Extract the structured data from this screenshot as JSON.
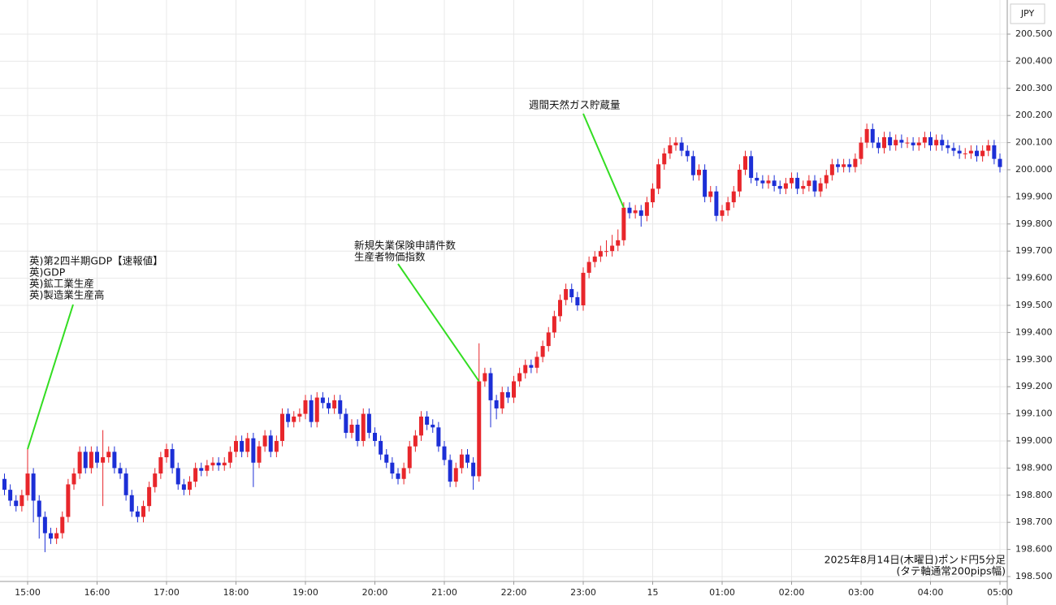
{
  "chart_data": {
    "type": "candlestick",
    "currency": "JPY",
    "note": [
      "2025年8月14日(木曜日)ポンド円5分足",
      "(タテ軸通常200pips幅)"
    ],
    "annotations": [
      {
        "lines": [
          "英)第2四半期GDP【速報値】",
          "英)GDP",
          "英)鉱工業生産",
          "英)製造業生産高"
        ]
      },
      {
        "lines": [
          "新規失業保険申請件数",
          "生産者物価指数"
        ]
      },
      {
        "lines": [
          "週間天然ガス貯蔵量"
        ]
      }
    ],
    "up_color": "#e8262b",
    "down_color": "#1c2fd6",
    "grid": true,
    "categories": [
      null,
      null,
      null,
      null,
      "15:00",
      null,
      null,
      null,
      null,
      null,
      null,
      null,
      null,
      null,
      null,
      null,
      "16:00",
      null,
      null,
      null,
      null,
      null,
      null,
      null,
      null,
      null,
      null,
      null,
      "17:00",
      null,
      null,
      null,
      null,
      null,
      null,
      null,
      null,
      null,
      null,
      null,
      "18:00",
      null,
      null,
      null,
      null,
      null,
      null,
      null,
      null,
      null,
      null,
      null,
      "19:00",
      null,
      null,
      null,
      null,
      null,
      null,
      null,
      null,
      null,
      null,
      null,
      "20:00",
      null,
      null,
      null,
      null,
      null,
      null,
      null,
      null,
      null,
      null,
      null,
      "21:00",
      null,
      null,
      null,
      null,
      null,
      null,
      null,
      null,
      null,
      null,
      null,
      "22:00",
      null,
      null,
      null,
      null,
      null,
      null,
      null,
      null,
      null,
      null,
      null,
      "23:00",
      null,
      null,
      null,
      null,
      null,
      null,
      null,
      null,
      null,
      null,
      null,
      "15",
      null,
      null,
      null,
      null,
      null,
      null,
      null,
      null,
      null,
      null,
      null,
      "01:00",
      null,
      null,
      null,
      null,
      null,
      null,
      null,
      null,
      null,
      null,
      null,
      "02:00",
      null,
      null,
      null,
      null,
      null,
      null,
      null,
      null,
      null,
      null,
      null,
      "03:00",
      null,
      null,
      null,
      null,
      null,
      null,
      null,
      null,
      null,
      null,
      null,
      "04:00",
      null,
      null,
      null,
      null,
      null,
      null,
      null,
      null,
      null,
      null,
      null,
      "05:00"
    ],
    "open": [
      198.86,
      198.82,
      198.78,
      198.76,
      198.8,
      198.88,
      198.78,
      198.72,
      198.66,
      198.64,
      198.66,
      198.72,
      198.84,
      198.88,
      198.96,
      198.9,
      198.96,
      198.92,
      198.94,
      198.96,
      198.9,
      198.88,
      198.8,
      198.74,
      198.72,
      198.76,
      198.83,
      198.88,
      198.94,
      198.97,
      198.9,
      198.84,
      198.82,
      198.85,
      198.9,
      198.89,
      198.91,
      198.92,
      198.91,
      198.92,
      198.96,
      199.0,
      198.96,
      199.01,
      198.92,
      198.98,
      199.02,
      198.96,
      199.0,
      199.1,
      199.07,
      199.09,
      199.1,
      199.15,
      199.07,
      199.16,
      199.14,
      199.12,
      199.15,
      199.1,
      199.03,
      199.06,
      199.0,
      199.1,
      199.03,
      199.0,
      198.95,
      198.92,
      198.88,
      198.86,
      198.9,
      198.98,
      199.02,
      199.09,
      199.06,
      199.05,
      198.98,
      198.93,
      198.85,
      198.9,
      198.95,
      198.92,
      198.87,
      199.22,
      199.25,
      199.15,
      199.12,
      199.18,
      199.16,
      199.22,
      199.25,
      199.28,
      199.27,
      199.31,
      199.35,
      199.4,
      199.46,
      199.52,
      199.56,
      199.53,
      199.5,
      199.62,
      199.66,
      199.68,
      199.7,
      199.7,
      199.72,
      199.74,
      199.86,
      199.84,
      199.85,
      199.83,
      199.88,
      199.93,
      200.02,
      200.06,
      200.09,
      200.1,
      200.07,
      200.05,
      199.98,
      200.0,
      199.9,
      199.92,
      199.83,
      199.85,
      199.88,
      199.92,
      200.0,
      200.05,
      199.97,
      199.96,
      199.95,
      199.96,
      199.94,
      199.93,
      199.95,
      199.97,
      199.93,
      199.94,
      199.96,
      199.92,
      199.95,
      199.98,
      200.02,
      200.01,
      200.02,
      200.01,
      200.04,
      200.1,
      200.15,
      200.1,
      200.08,
      200.12,
      200.09,
      200.11,
      200.1,
      200.1,
      200.09,
      200.1,
      200.12,
      200.09,
      200.11,
      200.09,
      200.08,
      200.07,
      200.06,
      200.06,
      200.07,
      200.05,
      200.07,
      200.09,
      200.04
    ],
    "high": [
      198.88,
      198.84,
      198.8,
      198.82,
      198.97,
      198.9,
      198.8,
      198.74,
      198.68,
      198.68,
      198.74,
      198.86,
      198.9,
      198.98,
      198.98,
      198.98,
      198.98,
      199.04,
      198.98,
      198.98,
      198.92,
      198.9,
      198.82,
      198.76,
      198.78,
      198.85,
      198.9,
      198.96,
      198.99,
      198.99,
      198.92,
      198.86,
      198.87,
      198.92,
      198.92,
      198.93,
      198.94,
      198.94,
      198.94,
      198.98,
      199.02,
      199.02,
      199.03,
      199.03,
      199.0,
      199.04,
      199.04,
      199.02,
      199.12,
      199.12,
      199.11,
      199.12,
      199.17,
      199.17,
      199.18,
      199.18,
      199.16,
      199.17,
      199.17,
      199.12,
      199.08,
      199.08,
      199.12,
      199.12,
      199.05,
      199.02,
      198.97,
      198.94,
      198.9,
      198.92,
      199.0,
      199.04,
      199.11,
      199.11,
      199.08,
      199.07,
      199.0,
      198.95,
      198.92,
      198.97,
      198.97,
      198.94,
      199.36,
      199.27,
      199.27,
      199.17,
      199.2,
      199.2,
      199.24,
      199.27,
      199.3,
      199.3,
      199.33,
      199.37,
      199.42,
      199.48,
      199.54,
      199.58,
      199.58,
      199.55,
      199.64,
      199.68,
      199.7,
      199.72,
      199.74,
      199.76,
      199.78,
      199.88,
      199.88,
      199.87,
      199.87,
      199.9,
      199.95,
      200.04,
      200.08,
      200.12,
      200.12,
      200.12,
      200.09,
      200.07,
      200.02,
      200.02,
      199.94,
      199.94,
      199.87,
      199.9,
      199.94,
      200.02,
      200.07,
      200.07,
      199.99,
      199.98,
      199.98,
      199.98,
      199.96,
      199.97,
      199.99,
      199.99,
      199.96,
      199.98,
      199.98,
      199.97,
      200.0,
      200.04,
      200.04,
      200.04,
      200.04,
      200.06,
      200.12,
      200.17,
      200.17,
      200.12,
      200.14,
      200.14,
      200.13,
      200.13,
      200.12,
      200.12,
      200.12,
      200.14,
      200.14,
      200.13,
      200.13,
      200.11,
      200.1,
      200.09,
      200.08,
      200.09,
      200.09,
      200.09,
      200.11,
      200.11,
      200.06
    ],
    "low": [
      198.8,
      198.76,
      198.74,
      198.74,
      198.78,
      198.7,
      198.64,
      198.59,
      198.62,
      198.62,
      198.64,
      198.7,
      198.82,
      198.86,
      198.88,
      198.88,
      198.9,
      198.76,
      198.92,
      198.88,
      198.86,
      198.78,
      198.72,
      198.7,
      198.7,
      198.74,
      198.81,
      198.86,
      198.92,
      198.88,
      198.82,
      198.8,
      198.8,
      198.83,
      198.87,
      198.87,
      198.89,
      198.89,
      198.89,
      198.9,
      198.94,
      198.94,
      198.94,
      198.83,
      198.9,
      198.96,
      198.94,
      198.94,
      198.98,
      199.05,
      199.05,
      199.07,
      199.08,
      199.05,
      199.05,
      199.12,
      199.1,
      199.1,
      199.08,
      199.01,
      199.01,
      198.98,
      198.98,
      199.01,
      198.98,
      198.93,
      198.9,
      198.86,
      198.84,
      198.84,
      198.88,
      198.96,
      199.0,
      199.04,
      199.03,
      198.96,
      198.91,
      198.83,
      198.83,
      198.88,
      198.9,
      198.82,
      198.85,
      199.2,
      199.05,
      199.08,
      199.1,
      199.14,
      199.14,
      199.2,
      199.23,
      199.25,
      199.25,
      199.29,
      199.33,
      199.38,
      199.44,
      199.5,
      199.51,
      199.48,
      199.48,
      199.6,
      199.64,
      199.66,
      199.68,
      199.68,
      199.7,
      199.72,
      199.82,
      199.82,
      199.79,
      199.81,
      199.86,
      199.91,
      200.0,
      200.04,
      200.07,
      200.05,
      200.03,
      199.96,
      199.96,
      199.88,
      199.88,
      199.81,
      199.81,
      199.83,
      199.86,
      199.9,
      199.98,
      199.95,
      199.94,
      199.93,
      199.93,
      199.92,
      199.91,
      199.91,
      199.93,
      199.91,
      199.91,
      199.92,
      199.9,
      199.9,
      199.93,
      199.96,
      199.99,
      199.99,
      199.99,
      199.99,
      200.02,
      200.08,
      200.08,
      200.06,
      200.06,
      200.07,
      200.07,
      200.08,
      200.08,
      200.07,
      200.07,
      200.08,
      200.07,
      200.07,
      200.07,
      200.06,
      200.05,
      200.04,
      200.04,
      200.04,
      200.03,
      200.03,
      200.05,
      200.02,
      199.99
    ],
    "close": [
      198.82,
      198.78,
      198.76,
      198.8,
      198.88,
      198.78,
      198.72,
      198.66,
      198.64,
      198.66,
      198.72,
      198.84,
      198.88,
      198.96,
      198.9,
      198.96,
      198.92,
      198.94,
      198.96,
      198.9,
      198.88,
      198.8,
      198.74,
      198.72,
      198.76,
      198.83,
      198.88,
      198.94,
      198.97,
      198.9,
      198.84,
      198.82,
      198.85,
      198.9,
      198.89,
      198.91,
      198.92,
      198.91,
      198.92,
      198.96,
      199.0,
      198.96,
      199.01,
      198.92,
      198.98,
      199.02,
      198.96,
      199.0,
      199.1,
      199.07,
      199.09,
      199.1,
      199.15,
      199.07,
      199.16,
      199.14,
      199.12,
      199.15,
      199.1,
      199.03,
      199.06,
      199.0,
      199.1,
      199.03,
      199.0,
      198.95,
      198.92,
      198.88,
      198.86,
      198.9,
      198.98,
      199.02,
      199.09,
      199.06,
      199.05,
      198.98,
      198.93,
      198.85,
      198.9,
      198.95,
      198.92,
      198.87,
      199.22,
      199.25,
      199.15,
      199.12,
      199.18,
      199.16,
      199.22,
      199.25,
      199.28,
      199.27,
      199.31,
      199.35,
      199.4,
      199.46,
      199.52,
      199.56,
      199.53,
      199.5,
      199.62,
      199.66,
      199.68,
      199.7,
      199.7,
      199.72,
      199.74,
      199.86,
      199.84,
      199.85,
      199.83,
      199.88,
      199.93,
      200.02,
      200.06,
      200.09,
      200.1,
      200.07,
      200.05,
      199.98,
      200.0,
      199.9,
      199.92,
      199.83,
      199.85,
      199.88,
      199.92,
      200.0,
      200.05,
      199.97,
      199.96,
      199.95,
      199.96,
      199.94,
      199.93,
      199.95,
      199.97,
      199.93,
      199.94,
      199.96,
      199.92,
      199.95,
      199.98,
      200.02,
      200.01,
      200.02,
      200.01,
      200.04,
      200.1,
      200.15,
      200.1,
      200.08,
      200.12,
      200.09,
      200.11,
      200.1,
      200.1,
      200.09,
      200.1,
      200.12,
      200.09,
      200.11,
      200.09,
      200.08,
      200.07,
      200.06,
      200.06,
      200.07,
      200.05,
      200.07,
      200.09,
      200.04,
      200.01
    ],
    "ylim": [
      198.5,
      200.5
    ],
    "yticks": [
      {
        "value": 198.5,
        "label": "198.500"
      },
      {
        "value": 198.6,
        "label": "198.600"
      },
      {
        "value": 198.7,
        "label": "198.700"
      },
      {
        "value": 198.8,
        "label": "198.800"
      },
      {
        "value": 198.9,
        "label": "198.900"
      },
      {
        "value": 199.0,
        "label": "199.000"
      },
      {
        "value": 199.1,
        "label": "199.100"
      },
      {
        "value": 199.2,
        "label": "199.200"
      },
      {
        "value": 199.3,
        "label": "199.300"
      },
      {
        "value": 199.4,
        "label": "199.400"
      },
      {
        "value": 199.5,
        "label": "199.500"
      },
      {
        "value": 199.6,
        "label": "199.600"
      },
      {
        "value": 199.7,
        "label": "199.700"
      },
      {
        "value": 199.8,
        "label": "199.800"
      },
      {
        "value": 199.9,
        "label": "199.900"
      },
      {
        "value": 200.0,
        "label": "200.000"
      },
      {
        "value": 200.1,
        "label": "200.100"
      },
      {
        "value": 200.2,
        "label": "200.200"
      },
      {
        "value": 200.3,
        "label": "200.300"
      },
      {
        "value": 200.4,
        "label": "200.400"
      },
      {
        "value": 200.5,
        "label": "200.500"
      }
    ]
  }
}
